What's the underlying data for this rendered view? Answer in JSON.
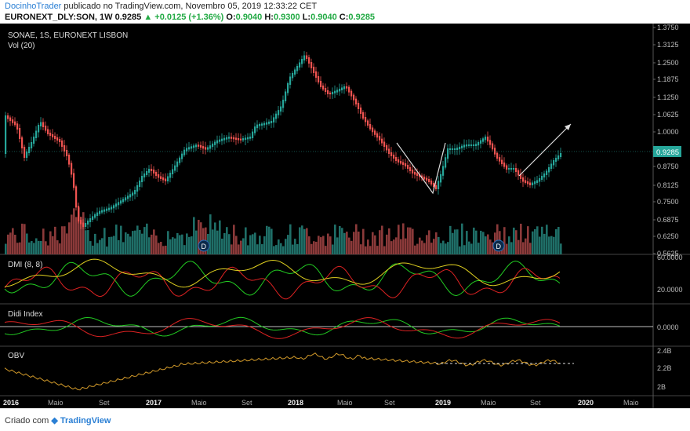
{
  "header": {
    "author": "DocinhoTrader",
    "published": "publicado no TradingView.com, Novembro 05, 2019 12:33:22 CET",
    "symbol": "EURONEXT_DLY:SON, 1W",
    "last": "0.9285",
    "change": "+0.0125 (+1.36%)",
    "open_label": "O:",
    "open": "0.9040",
    "high_label": "H:",
    "high": "0.9300",
    "low_label": "L:",
    "low": "0.9040",
    "close_label": "C:",
    "close": "0.9285"
  },
  "chart": {
    "title": "SONAE, 1S, EURONEXT LISBON",
    "vol_label": "Vol (20)",
    "price_ticks": [
      "1.3750",
      "1.3125",
      "1.2500",
      "1.1875",
      "1.1250",
      "1.0625",
      "1.0000",
      "0.8750",
      "0.8125",
      "0.7500",
      "0.6875",
      "0.6250",
      "0.5625"
    ],
    "price_tag": "0.9285",
    "dividend_marker": "D",
    "colors": {
      "up": "#26a69a",
      "down": "#ef5350",
      "volume_up": "#1f6f68",
      "volume_down": "#8b3a3a",
      "dmi_plus": "#22cc22",
      "dmi_minus": "#dd2222",
      "adx": "#e0d020",
      "obv": "#d29a2a"
    },
    "time_labels": [
      "2016",
      "Maio",
      "Set",
      "2017",
      "Maio",
      "Set",
      "2018",
      "Maio",
      "Set",
      "2019",
      "Maio",
      "Set",
      "2020",
      "Maio"
    ],
    "time_label_bold": [
      true,
      false,
      false,
      true,
      false,
      false,
      true,
      false,
      false,
      true,
      false,
      false,
      true,
      false
    ]
  },
  "dmi": {
    "label": "DMI (8, 8)",
    "ticks": [
      "60.0000",
      "20.0000"
    ]
  },
  "didi": {
    "label": "Didi Index",
    "ticks": [
      "0.0000"
    ]
  },
  "obv": {
    "label": "OBV",
    "ticks": [
      "2.4B",
      "2.2B",
      "2B"
    ]
  },
  "footer": {
    "created_with": "Criado com",
    "brand": "TradingView"
  }
}
